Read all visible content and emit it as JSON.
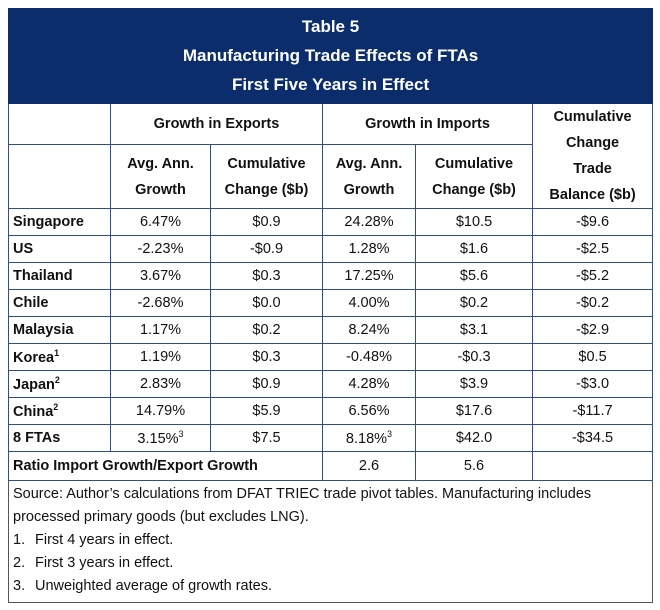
{
  "title": {
    "line1": "Table 5",
    "line2": "Manufacturing Trade Effects of FTAs",
    "line3": "First Five Years in Effect"
  },
  "headers": {
    "exports_group": "Growth in Exports",
    "imports_group": "Growth in Imports",
    "balance": [
      "Cumulative",
      "Change",
      "Trade",
      "Balance ($b)"
    ],
    "avg_growth": [
      "Avg. Ann.",
      "Growth"
    ],
    "cum_change": [
      "Cumulative",
      "Change ($b)"
    ]
  },
  "rows": [
    {
      "label": "Singapore",
      "sup": "",
      "exp_growth": "6.47%",
      "exp_sup": "",
      "exp_cum": "$0.9",
      "imp_growth": "24.28%",
      "imp_sup": "",
      "imp_cum": "$10.5",
      "balance": "-$9.6"
    },
    {
      "label": "US",
      "sup": "",
      "exp_growth": "-2.23%",
      "exp_sup": "",
      "exp_cum": "-$0.9",
      "imp_growth": "1.28%",
      "imp_sup": "",
      "imp_cum": "$1.6",
      "balance": "-$2.5"
    },
    {
      "label": "Thailand",
      "sup": "",
      "exp_growth": "3.67%",
      "exp_sup": "",
      "exp_cum": "$0.3",
      "imp_growth": "17.25%",
      "imp_sup": "",
      "imp_cum": "$5.6",
      "balance": "-$5.2"
    },
    {
      "label": "Chile",
      "sup": "",
      "exp_growth": "-2.68%",
      "exp_sup": "",
      "exp_cum": "$0.0",
      "imp_growth": "4.00%",
      "imp_sup": "",
      "imp_cum": "$0.2",
      "balance": "-$0.2"
    },
    {
      "label": "Malaysia",
      "sup": "",
      "exp_growth": "1.17%",
      "exp_sup": "",
      "exp_cum": "$0.2",
      "imp_growth": "8.24%",
      "imp_sup": "",
      "imp_cum": "$3.1",
      "balance": "-$2.9"
    },
    {
      "label": "Korea",
      "sup": "1",
      "exp_growth": "1.19%",
      "exp_sup": "",
      "exp_cum": "$0.3",
      "imp_growth": "-0.48%",
      "imp_sup": "",
      "imp_cum": "-$0.3",
      "balance": "$0.5"
    },
    {
      "label": "Japan",
      "sup": "2",
      "exp_growth": "2.83%",
      "exp_sup": "",
      "exp_cum": "$0.9",
      "imp_growth": "4.28%",
      "imp_sup": "",
      "imp_cum": "$3.9",
      "balance": "-$3.0"
    },
    {
      "label": "China",
      "sup": "2",
      "exp_growth": "14.79%",
      "exp_sup": "",
      "exp_cum": "$5.9",
      "imp_growth": "6.56%",
      "imp_sup": "",
      "imp_cum": "$17.6",
      "balance": "-$11.7"
    },
    {
      "label": "8 FTAs",
      "sup": "",
      "exp_growth": "3.15%",
      "exp_sup": "3",
      "exp_cum": "$7.5",
      "imp_growth": "8.18%",
      "imp_sup": "3",
      "imp_cum": "$42.0",
      "balance": "-$34.5"
    }
  ],
  "ratio": {
    "label": "Ratio Import Growth/Export Growth",
    "growth": "2.6",
    "cum": "5.6"
  },
  "notes": {
    "source": "Source: Author’s calculations from DFAT TRIEC trade pivot tables. Manufacturing includes processed primary goods (but excludes LNG).",
    "items": [
      {
        "n": "1.",
        "text": "First 4 years in effect."
      },
      {
        "n": "2.",
        "text": "First 3 years in effect."
      },
      {
        "n": "3.",
        "text": "Unweighted average of growth rates."
      }
    ]
  },
  "colors": {
    "title_bg": "#0b2d6b",
    "border": "#2f4d8a"
  }
}
